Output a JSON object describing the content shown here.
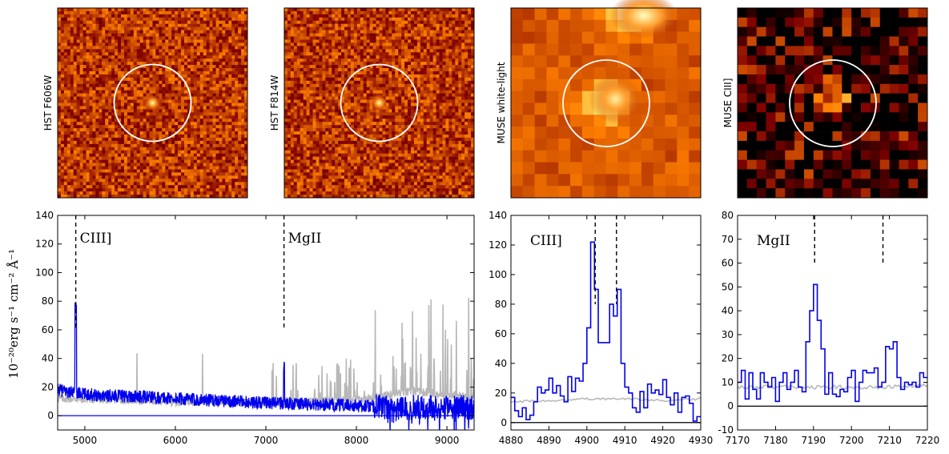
{
  "colors": {
    "spectrum": "#0000ee",
    "sky": "#b8b8b8",
    "zero_line": "#000000",
    "marker": "#000000",
    "circle": "#ffffff"
  },
  "image_panels": [
    {
      "label": "HST F606W",
      "colormap": "afmhot",
      "type": "hst"
    },
    {
      "label": "HST F814W",
      "colormap": "afmhot",
      "type": "hst"
    },
    {
      "label": "MUSE white-light",
      "colormap": "afmhot",
      "type": "muse"
    },
    {
      "label": "MUSE CIII]",
      "colormap": "afmhot",
      "type": "muse-line"
    }
  ],
  "chart_data": [
    {
      "type": "line",
      "panel": "full-spectrum",
      "title": "",
      "xlabel": "",
      "ylabel": "10⁻²⁰erg s⁻¹ cm⁻² Å⁻¹",
      "xlim": [
        4700,
        9300
      ],
      "ylim": [
        -10,
        140
      ],
      "xticks": [
        5000,
        6000,
        7000,
        8000,
        9000
      ],
      "yticks": [
        0,
        20,
        40,
        60,
        80,
        100,
        120,
        140
      ],
      "series": [
        {
          "name": "sky",
          "description": "gray sky spectrum",
          "x": [
            4700,
            5500,
            6000,
            6500,
            7000,
            7500,
            8000,
            8300,
            8600,
            8800,
            9000,
            9300
          ],
          "values": [
            12,
            11,
            10,
            10,
            9,
            10,
            11,
            14,
            17,
            16,
            14,
            13
          ]
        },
        {
          "name": "object",
          "description": "blue object spectrum",
          "x": [
            4700,
            4800,
            4900,
            5000,
            5500,
            6000,
            6500,
            7000,
            7200,
            7500,
            8000,
            8500,
            9000,
            9300
          ],
          "values": [
            18,
            17,
            80,
            16,
            14,
            12,
            11,
            9,
            36,
            8,
            6,
            4,
            3,
            6
          ]
        }
      ],
      "annotations": [
        {
          "text": "CIII]",
          "x": 4900,
          "y_top": 140,
          "y_bottom": 60
        },
        {
          "text": "MgII",
          "x": 7200,
          "y_top": 140,
          "y_bottom": 60
        }
      ]
    },
    {
      "type": "line",
      "panel": "ciii-zoom",
      "xlim": [
        4880,
        4930
      ],
      "ylim": [
        -5,
        140
      ],
      "xticks": [
        4880,
        4890,
        4900,
        4910,
        4920,
        4930
      ],
      "yticks": [
        0,
        20,
        40,
        60,
        80,
        100,
        120,
        140
      ],
      "series": [
        {
          "name": "object",
          "x": [
            4880,
            4881,
            4882,
            4883,
            4884,
            4885,
            4886,
            4887,
            4888,
            4889,
            4890,
            4891,
            4892,
            4893,
            4894,
            4895,
            4896,
            4897,
            4898,
            4899,
            4900,
            4901,
            4902,
            4903,
            4904,
            4905,
            4906,
            4907,
            4908,
            4909,
            4910,
            4911,
            4912,
            4913,
            4914,
            4915,
            4916,
            4917,
            4918,
            4919,
            4920,
            4921,
            4922,
            4923,
            4924,
            4925,
            4926,
            4927,
            4928,
            4929
          ],
          "values": [
            17,
            8,
            4,
            10,
            2,
            5,
            14,
            24,
            20,
            22,
            30,
            20,
            25,
            18,
            14,
            31,
            21,
            30,
            28,
            40,
            64,
            122,
            90,
            54,
            54,
            54,
            80,
            72,
            90,
            40,
            24,
            20,
            10,
            7,
            21,
            10,
            26,
            20,
            22,
            19,
            29,
            17,
            12,
            20,
            7,
            17,
            18,
            13,
            1,
            4
          ]
        },
        {
          "name": "sky",
          "x": [
            4880,
            4890,
            4900,
            4910,
            4920,
            4930
          ],
          "values": [
            14,
            15,
            16,
            16,
            15,
            16
          ]
        }
      ],
      "annotations": [
        {
          "text": "CIII]",
          "x": [
            4902.2,
            4907.8
          ],
          "y_top": 140,
          "y_bottom": 80
        }
      ]
    },
    {
      "type": "line",
      "panel": "mgii-zoom",
      "xlim": [
        7170,
        7220
      ],
      "ylim": [
        -10,
        80
      ],
      "xticks": [
        7170,
        7180,
        7190,
        7200,
        7210,
        7220
      ],
      "yticks": [
        -10,
        0,
        10,
        20,
        30,
        40,
        50,
        60,
        70,
        80
      ],
      "series": [
        {
          "name": "object",
          "x": [
            7170,
            7171,
            7172,
            7173,
            7174,
            7175,
            7176,
            7177,
            7178,
            7179,
            7180,
            7181,
            7182,
            7183,
            7184,
            7185,
            7186,
            7187,
            7188,
            7189,
            7190,
            7191,
            7192,
            7193,
            7194,
            7195,
            7196,
            7197,
            7198,
            7199,
            7200,
            7201,
            7202,
            7203,
            7204,
            7205,
            7206,
            7207,
            7208,
            7209,
            7210,
            7211,
            7212,
            7213,
            7214,
            7215,
            7216,
            7217,
            7218,
            7219
          ],
          "values": [
            10,
            15,
            3,
            14,
            7,
            3,
            14,
            10,
            8,
            12,
            2,
            10,
            14,
            7,
            10,
            15,
            8,
            6,
            27,
            40,
            51,
            36,
            24,
            5,
            14,
            5,
            4,
            7,
            6,
            12,
            15,
            2,
            10,
            15,
            14,
            14,
            16,
            8,
            10,
            25,
            24,
            27,
            12,
            7,
            10,
            9,
            10,
            8,
            14,
            12
          ]
        },
        {
          "name": "sky",
          "x": [
            7170,
            7180,
            7190,
            7200,
            7210,
            7220
          ],
          "values": [
            8,
            8,
            8,
            8,
            8,
            9
          ]
        }
      ],
      "annotations": [
        {
          "text": "MgII",
          "x": [
            7190.3,
            7208.3
          ],
          "y_top": 80,
          "y_bottom": 60
        }
      ]
    }
  ]
}
